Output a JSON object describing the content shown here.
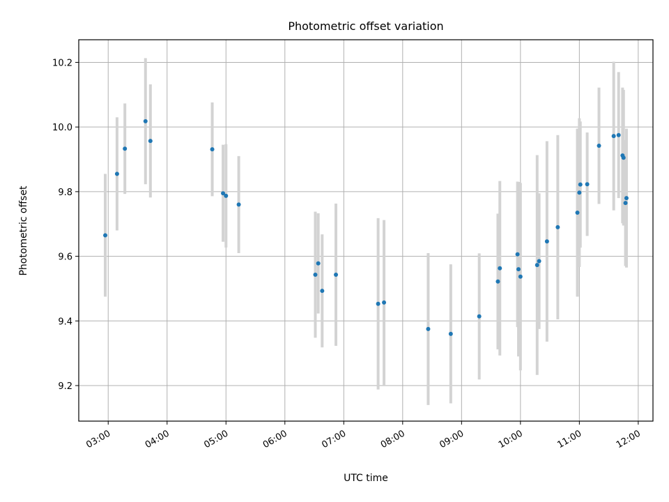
{
  "chart_data": {
    "type": "scatter",
    "title": "Photometric offset variation",
    "xlabel": "UTC time",
    "ylabel": "Photometric offset",
    "x_tick_labels": [
      "03:00",
      "04:00",
      "05:00",
      "06:00",
      "07:00",
      "08:00",
      "09:00",
      "10:00",
      "11:00",
      "12:00"
    ],
    "x_tick_hours": [
      3,
      4,
      5,
      6,
      7,
      8,
      9,
      10,
      11,
      12
    ],
    "y_ticks": [
      9.2,
      9.4,
      9.6,
      9.8,
      10.0,
      10.2
    ],
    "y_tick_labels": [
      "9.2",
      "9.4",
      "9.6",
      "9.8",
      "10.0",
      "10.2"
    ],
    "xlim_hours": [
      2.5,
      12.25
    ],
    "ylim": [
      9.09,
      10.27
    ],
    "grid": true,
    "marker_color": "#1f77b4",
    "errorbar_color": "#d3d3d3",
    "points": [
      {
        "t": "02:57",
        "y": 9.665,
        "err": 0.19
      },
      {
        "t": "03:09",
        "y": 9.855,
        "err": 0.175
      },
      {
        "t": "03:17",
        "y": 9.933,
        "err": 0.14
      },
      {
        "t": "03:38",
        "y": 10.018,
        "err": 0.195
      },
      {
        "t": "03:43",
        "y": 9.957,
        "err": 0.175
      },
      {
        "t": "04:46",
        "y": 9.931,
        "err": 0.145
      },
      {
        "t": "04:57",
        "y": 9.795,
        "err": 0.15
      },
      {
        "t": "05:00",
        "y": 9.787,
        "err": 0.16
      },
      {
        "t": "05:13",
        "y": 9.76,
        "err": 0.15
      },
      {
        "t": "06:31",
        "y": 9.543,
        "err": 0.195
      },
      {
        "t": "06:34",
        "y": 9.578,
        "err": 0.155
      },
      {
        "t": "06:38",
        "y": 9.493,
        "err": 0.175
      },
      {
        "t": "06:52",
        "y": 9.543,
        "err": 0.22
      },
      {
        "t": "07:35",
        "y": 9.453,
        "err": 0.265
      },
      {
        "t": "07:41",
        "y": 9.457,
        "err": 0.255
      },
      {
        "t": "08:26",
        "y": 9.375,
        "err": 0.235
      },
      {
        "t": "08:49",
        "y": 9.36,
        "err": 0.215
      },
      {
        "t": "09:18",
        "y": 9.414,
        "err": 0.195
      },
      {
        "t": "09:37",
        "y": 9.522,
        "err": 0.21
      },
      {
        "t": "09:39",
        "y": 9.563,
        "err": 0.27
      },
      {
        "t": "09:57",
        "y": 9.606,
        "err": 0.225
      },
      {
        "t": "09:58",
        "y": 9.56,
        "err": 0.27
      },
      {
        "t": "10:00",
        "y": 9.537,
        "err": 0.29
      },
      {
        "t": "10:17",
        "y": 9.573,
        "err": 0.34
      },
      {
        "t": "10:19",
        "y": 9.585,
        "err": 0.21
      },
      {
        "t": "10:27",
        "y": 9.646,
        "err": 0.31
      },
      {
        "t": "10:38",
        "y": 9.69,
        "err": 0.285
      },
      {
        "t": "10:58",
        "y": 9.735,
        "err": 0.26
      },
      {
        "t": "11:00",
        "y": 9.797,
        "err": 0.23
      },
      {
        "t": "11:01",
        "y": 9.822,
        "err": 0.195
      },
      {
        "t": "11:08",
        "y": 9.823,
        "err": 0.16
      },
      {
        "t": "11:20",
        "y": 9.942,
        "err": 0.18
      },
      {
        "t": "11:35",
        "y": 9.972,
        "err": 0.23
      },
      {
        "t": "11:40",
        "y": 9.975,
        "err": 0.195
      },
      {
        "t": "11:44",
        "y": 9.912,
        "err": 0.21
      },
      {
        "t": "11:45",
        "y": 9.905,
        "err": 0.21
      },
      {
        "t": "11:47",
        "y": 9.765,
        "err": 0.195
      },
      {
        "t": "11:48",
        "y": 9.78,
        "err": 0.215
      }
    ]
  }
}
